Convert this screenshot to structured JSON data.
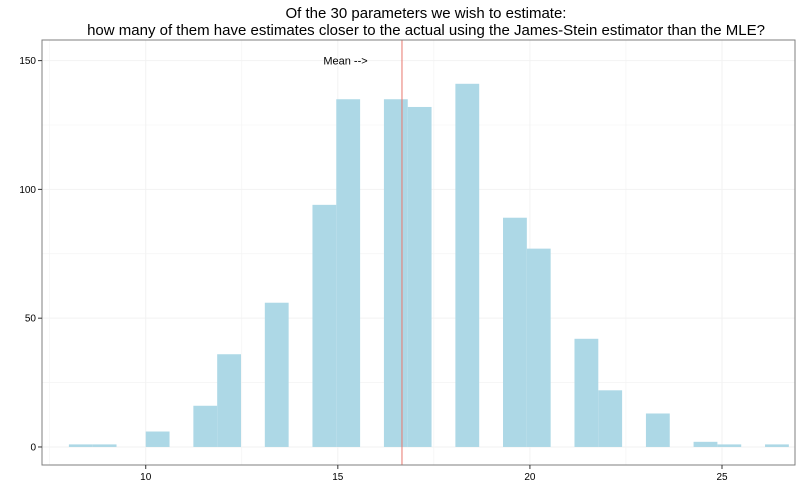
{
  "chart_data": {
    "type": "bar",
    "title_lines": [
      "Of the 30 parameters we wish to estimate:",
      "how many of them have estimates closer to the actual using the James-Stein estimator than the MLE?"
    ],
    "xlabel": "",
    "ylabel": "",
    "xlim": [
      7.3,
      26.9
    ],
    "ylim": [
      -7,
      158
    ],
    "xticks": [
      10,
      15,
      20,
      25
    ],
    "yticks": [
      0,
      50,
      100,
      150
    ],
    "bar_width": 0.62,
    "bar_color": "#add8e6",
    "grid": true,
    "grid_color": "#f2f2f2",
    "panel_border_color": "#7f7f7f",
    "bars": [
      {
        "x": 8,
        "count": 1
      },
      {
        "x": 8.62,
        "count": 1
      },
      {
        "x": 10,
        "count": 6
      },
      {
        "x": 11.24,
        "count": 16
      },
      {
        "x": 11.86,
        "count": 36
      },
      {
        "x": 13.1,
        "count": 56
      },
      {
        "x": 14.34,
        "count": 94
      },
      {
        "x": 14.96,
        "count": 135
      },
      {
        "x": 16.2,
        "count": 135
      },
      {
        "x": 16.82,
        "count": 132
      },
      {
        "x": 18.06,
        "count": 141
      },
      {
        "x": 19.3,
        "count": 89
      },
      {
        "x": 19.92,
        "count": 77
      },
      {
        "x": 21.16,
        "count": 42
      },
      {
        "x": 21.78,
        "count": 22
      },
      {
        "x": 23.02,
        "count": 13
      },
      {
        "x": 24.26,
        "count": 2
      },
      {
        "x": 24.88,
        "count": 1
      },
      {
        "x": 26.12,
        "count": 1
      }
    ],
    "mean_line": {
      "x": 16.67,
      "color": "#e8776d"
    },
    "annotation": {
      "text": "Mean -->",
      "x": 15.2,
      "y": 150
    }
  }
}
